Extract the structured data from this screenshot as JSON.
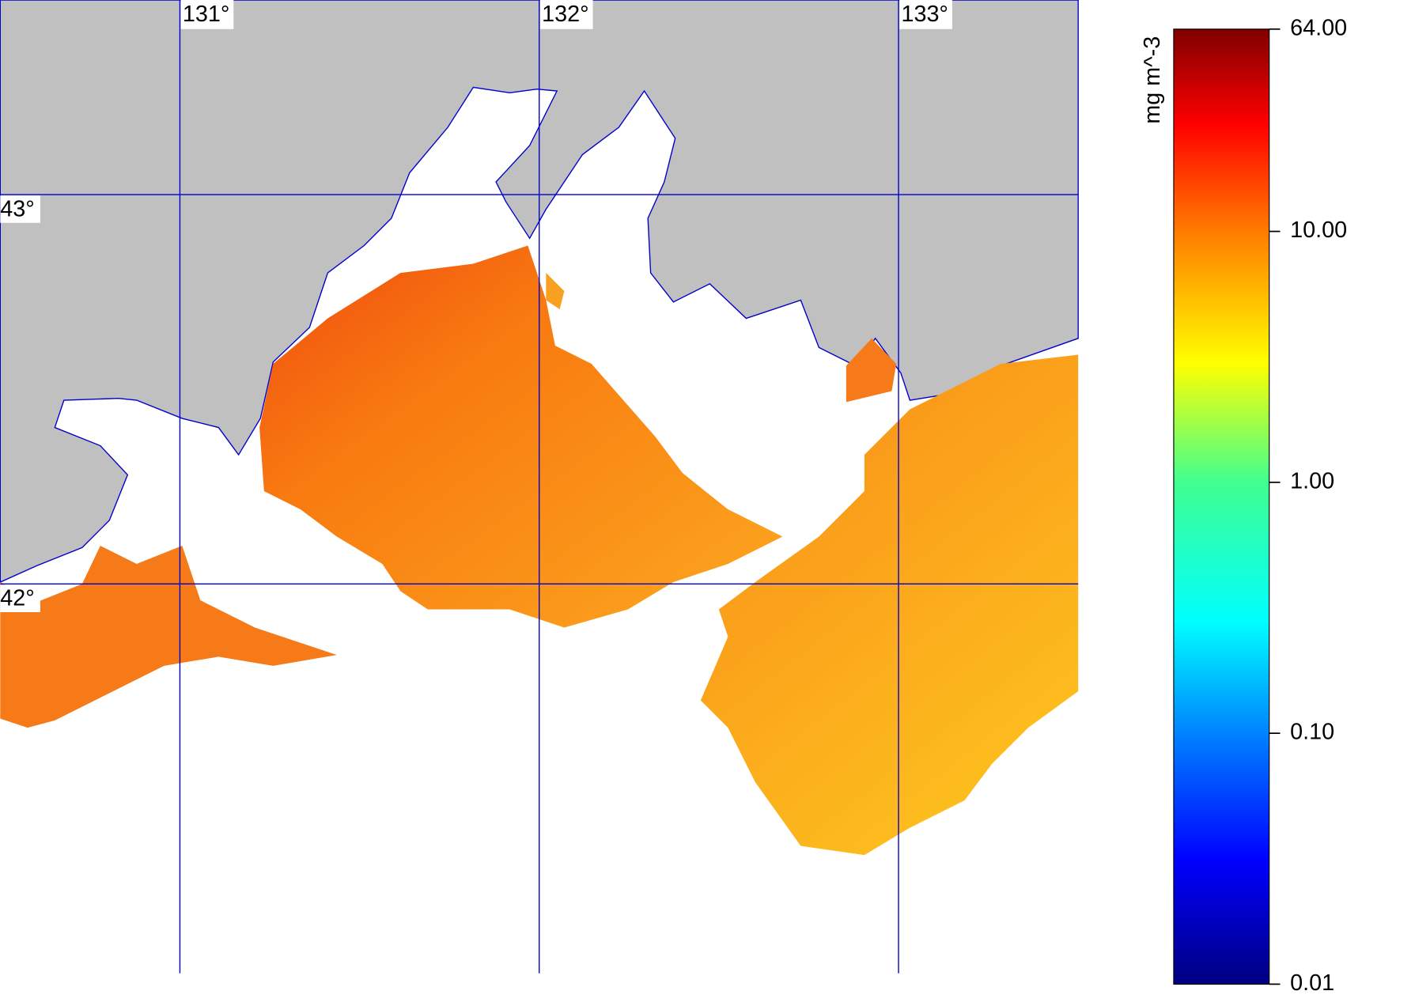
{
  "map": {
    "xlim": [
      130.5,
      133.5
    ],
    "ylim": [
      41,
      43.5
    ],
    "xticks": [
      {
        "value": 131,
        "label": "131°"
      },
      {
        "value": 132,
        "label": "132°"
      },
      {
        "value": 133,
        "label": "133°"
      }
    ],
    "yticks": [
      {
        "value": 43,
        "label": "43°"
      },
      {
        "value": 42,
        "label": "42°"
      }
    ],
    "grid_color": "#0000cc"
  },
  "colorbar": {
    "title": "mg m^-3",
    "log": true,
    "lim": [
      0.01,
      64
    ],
    "ticks": [
      {
        "value": 64,
        "label": "64.00"
      },
      {
        "value": 10,
        "label": "10.00"
      },
      {
        "value": 1,
        "label": "1.00"
      },
      {
        "value": 0.1,
        "label": "0.10"
      },
      {
        "value": 0.01,
        "label": "0.01"
      }
    ]
  }
}
